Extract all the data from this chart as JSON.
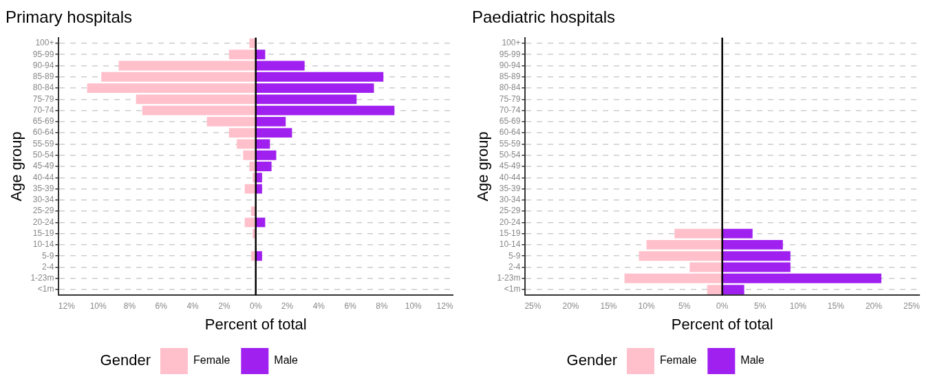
{
  "chart_data": [
    {
      "type": "bar",
      "title": "Primary hospitals",
      "xlabel": "Percent of total",
      "ylabel": "Age group",
      "orientation": "horizontal",
      "stacked": true,
      "legend": "bottom",
      "legend_title": "Gender",
      "grid": "y",
      "categories": [
        "100+",
        "95-99",
        "90-94",
        "85-89",
        "80-84",
        "75-79",
        "70-74",
        "65-69",
        "60-64",
        "55-59",
        "50-54",
        "45-49",
        "40-44",
        "35-39",
        "30-34",
        "25-29",
        "20-24",
        "15-19",
        "10-14",
        "5-9",
        "2-4",
        "1-23m",
        "<1m"
      ],
      "series": [
        {
          "name": "Female",
          "color": "#ffc0cb",
          "values": [
            -0.4,
            -1.7,
            -8.7,
            -9.8,
            -10.7,
            -7.6,
            -7.2,
            -3.1,
            -1.7,
            -1.2,
            -0.8,
            -0.4,
            -0.2,
            -0.7,
            0,
            -0.3,
            -0.7,
            -0.2,
            0,
            -0.3,
            0,
            0,
            0
          ]
        },
        {
          "name": "Male",
          "color": "#a020f0",
          "values": [
            null,
            0.6,
            3.1,
            8.1,
            7.5,
            6.4,
            8.8,
            1.9,
            2.3,
            0.9,
            1.3,
            1.0,
            0.4,
            0.4,
            null,
            0,
            0.6,
            0,
            null,
            0.4,
            0,
            0,
            0
          ]
        }
      ],
      "xlim": [
        -12.5,
        12.5
      ],
      "xticks": [
        {
          "value": -12,
          "label": "12%"
        },
        {
          "value": -10,
          "label": "10%"
        },
        {
          "value": -8,
          "label": "8%"
        },
        {
          "value": -6,
          "label": "6%"
        },
        {
          "value": -4,
          "label": "4%"
        },
        {
          "value": -2,
          "label": "2%"
        },
        {
          "value": 0,
          "label": "0%"
        },
        {
          "value": 2,
          "label": "2%"
        },
        {
          "value": 4,
          "label": "4%"
        },
        {
          "value": 6,
          "label": "6%"
        },
        {
          "value": 8,
          "label": "8%"
        },
        {
          "value": 10,
          "label": "10%"
        },
        {
          "value": 12,
          "label": "12%"
        }
      ],
      "ref_lines": [
        {
          "axis": "x",
          "value": 0,
          "color": "#000000"
        }
      ]
    },
    {
      "type": "bar",
      "title": "Paediatric hospitals",
      "xlabel": "Percent of total",
      "ylabel": "Age group",
      "orientation": "horizontal",
      "stacked": true,
      "legend": "bottom",
      "legend_title": "Gender",
      "grid": "y",
      "categories": [
        "100+",
        "95-99",
        "90-94",
        "85-89",
        "80-84",
        "75-79",
        "70-74",
        "65-69",
        "60-64",
        "55-59",
        "50-54",
        "45-49",
        "40-44",
        "35-39",
        "30-34",
        "25-29",
        "20-24",
        "15-19",
        "10-14",
        "5-9",
        "2-4",
        "1-23m",
        "<1m"
      ],
      "series": [
        {
          "name": "Female",
          "color": "#ffc0cb",
          "values": [
            0,
            0,
            0,
            0,
            0,
            0,
            0,
            0,
            0,
            0,
            0,
            0,
            0,
            0,
            0,
            0,
            0,
            -6.3,
            -10,
            -11,
            -4.3,
            -12.9,
            -2
          ]
        },
        {
          "name": "Male",
          "color": "#a020f0",
          "values": [
            0,
            0,
            0,
            0,
            0,
            0,
            0,
            0,
            0,
            0,
            0,
            0,
            0,
            0,
            0,
            0,
            0,
            4,
            8,
            9,
            9,
            21,
            2.9
          ]
        }
      ],
      "xlim": [
        -26,
        26
      ],
      "xticks": [
        {
          "value": -25,
          "label": "25%"
        },
        {
          "value": -20,
          "label": "20%"
        },
        {
          "value": -15,
          "label": "15%"
        },
        {
          "value": -10,
          "label": "10%"
        },
        {
          "value": -5,
          "label": "5%"
        },
        {
          "value": 0,
          "label": "0%"
        },
        {
          "value": 5,
          "label": "5%"
        },
        {
          "value": 10,
          "label": "10%"
        },
        {
          "value": 15,
          "label": "15%"
        },
        {
          "value": 20,
          "label": "20%"
        },
        {
          "value": 25,
          "label": "25%"
        }
      ],
      "ref_lines": [
        {
          "axis": "x",
          "value": 0,
          "color": "#000000"
        }
      ]
    }
  ]
}
